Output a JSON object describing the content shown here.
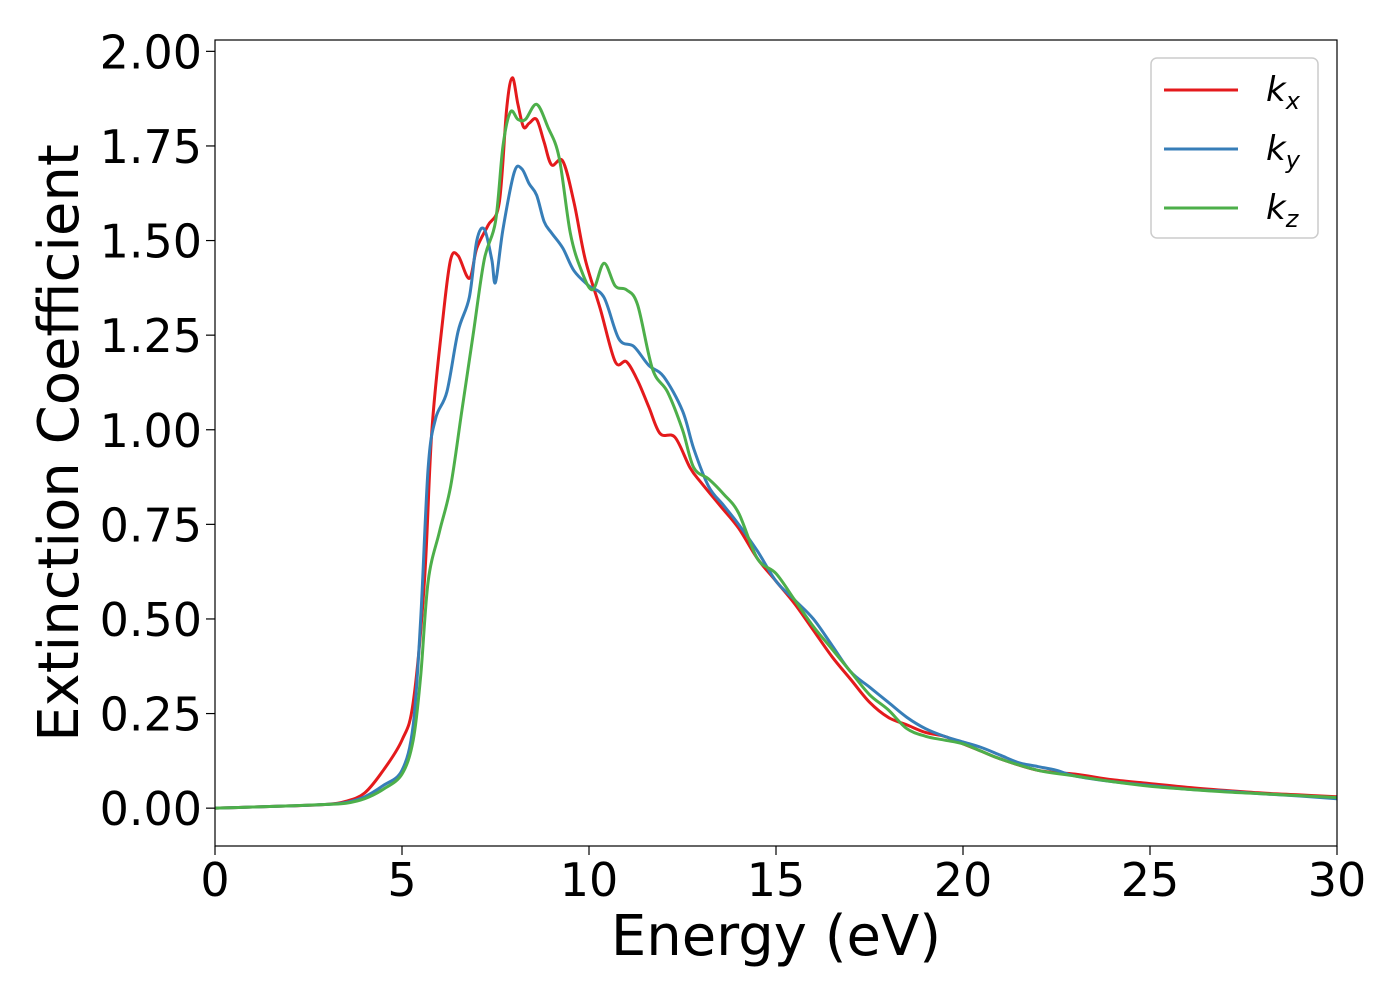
{
  "chart_data": {
    "type": "line",
    "title": "",
    "xlabel": "Energy (eV)",
    "ylabel": "Extinction Coefficient",
    "xlim": [
      0,
      30
    ],
    "ylim": [
      -0.1,
      2.03
    ],
    "xticks": [
      0,
      5,
      10,
      15,
      20,
      25,
      30
    ],
    "xtick_labels": [
      "0",
      "5",
      "10",
      "15",
      "20",
      "25",
      "30"
    ],
    "yticks": [
      0.0,
      0.25,
      0.5,
      0.75,
      1.0,
      1.25,
      1.5,
      1.75,
      2.0
    ],
    "ytick_labels": [
      "0.00",
      "0.25",
      "0.50",
      "0.75",
      "1.00",
      "1.25",
      "1.50",
      "1.75",
      "2.00"
    ],
    "grid": false,
    "legend_position": "top-right",
    "series": [
      {
        "name": "k",
        "subscript": "x",
        "color": "#e41a1c",
        "points": [
          [
            0,
            0
          ],
          [
            1,
            0.003
          ],
          [
            2,
            0.006
          ],
          [
            3,
            0.01
          ],
          [
            3.5,
            0.018
          ],
          [
            4,
            0.04
          ],
          [
            4.5,
            0.1
          ],
          [
            5,
            0.18
          ],
          [
            5.3,
            0.28
          ],
          [
            5.6,
            0.6
          ],
          [
            5.8,
            1.0
          ],
          [
            6.1,
            1.3
          ],
          [
            6.3,
            1.45
          ],
          [
            6.5,
            1.46
          ],
          [
            6.8,
            1.4
          ],
          [
            7.0,
            1.48
          ],
          [
            7.3,
            1.54
          ],
          [
            7.6,
            1.6
          ],
          [
            7.8,
            1.85
          ],
          [
            7.95,
            1.93
          ],
          [
            8.1,
            1.86
          ],
          [
            8.25,
            1.8
          ],
          [
            8.4,
            1.81
          ],
          [
            8.6,
            1.82
          ],
          [
            8.8,
            1.76
          ],
          [
            9.0,
            1.7
          ],
          [
            9.3,
            1.71
          ],
          [
            9.6,
            1.6
          ],
          [
            9.9,
            1.45
          ],
          [
            10.3,
            1.32
          ],
          [
            10.7,
            1.18
          ],
          [
            11.0,
            1.18
          ],
          [
            11.3,
            1.13
          ],
          [
            11.6,
            1.06
          ],
          [
            11.9,
            0.99
          ],
          [
            12.3,
            0.98
          ],
          [
            12.7,
            0.9
          ],
          [
            13.0,
            0.86
          ],
          [
            13.5,
            0.8
          ],
          [
            14.0,
            0.74
          ],
          [
            14.5,
            0.66
          ],
          [
            15.0,
            0.6
          ],
          [
            15.5,
            0.54
          ],
          [
            16.0,
            0.47
          ],
          [
            16.5,
            0.4
          ],
          [
            17.0,
            0.34
          ],
          [
            17.5,
            0.28
          ],
          [
            18.0,
            0.24
          ],
          [
            18.5,
            0.22
          ],
          [
            19.0,
            0.2
          ],
          [
            19.5,
            0.19
          ],
          [
            20.0,
            0.17
          ],
          [
            20.5,
            0.15
          ],
          [
            21.0,
            0.13
          ],
          [
            22.0,
            0.1
          ],
          [
            23.0,
            0.09
          ],
          [
            24.0,
            0.075
          ],
          [
            25.0,
            0.065
          ],
          [
            26.0,
            0.055
          ],
          [
            27.0,
            0.047
          ],
          [
            28.0,
            0.04
          ],
          [
            29.0,
            0.035
          ],
          [
            30.0,
            0.03
          ]
        ]
      },
      {
        "name": "k",
        "subscript": "y",
        "color": "#377eb8",
        "points": [
          [
            0,
            0
          ],
          [
            1,
            0.003
          ],
          [
            2,
            0.006
          ],
          [
            3,
            0.01
          ],
          [
            3.5,
            0.015
          ],
          [
            4,
            0.03
          ],
          [
            4.5,
            0.06
          ],
          [
            5,
            0.1
          ],
          [
            5.3,
            0.22
          ],
          [
            5.5,
            0.5
          ],
          [
            5.7,
            0.9
          ],
          [
            5.9,
            1.03
          ],
          [
            6.2,
            1.1
          ],
          [
            6.5,
            1.26
          ],
          [
            6.8,
            1.35
          ],
          [
            7.0,
            1.5
          ],
          [
            7.2,
            1.53
          ],
          [
            7.4,
            1.45
          ],
          [
            7.5,
            1.39
          ],
          [
            7.7,
            1.53
          ],
          [
            8.0,
            1.68
          ],
          [
            8.2,
            1.69
          ],
          [
            8.4,
            1.65
          ],
          [
            8.6,
            1.62
          ],
          [
            8.8,
            1.55
          ],
          [
            9.0,
            1.52
          ],
          [
            9.3,
            1.48
          ],
          [
            9.6,
            1.42
          ],
          [
            10.0,
            1.38
          ],
          [
            10.4,
            1.35
          ],
          [
            10.8,
            1.24
          ],
          [
            11.2,
            1.22
          ],
          [
            11.6,
            1.17
          ],
          [
            12.0,
            1.14
          ],
          [
            12.5,
            1.05
          ],
          [
            12.8,
            0.95
          ],
          [
            13.2,
            0.85
          ],
          [
            13.6,
            0.8
          ],
          [
            14.0,
            0.75
          ],
          [
            14.5,
            0.68
          ],
          [
            15.0,
            0.6
          ],
          [
            15.5,
            0.55
          ],
          [
            16.0,
            0.5
          ],
          [
            16.5,
            0.43
          ],
          [
            17.0,
            0.36
          ],
          [
            17.5,
            0.32
          ],
          [
            18.0,
            0.28
          ],
          [
            18.5,
            0.24
          ],
          [
            19.0,
            0.21
          ],
          [
            19.5,
            0.19
          ],
          [
            20.0,
            0.175
          ],
          [
            20.5,
            0.16
          ],
          [
            21.0,
            0.14
          ],
          [
            21.5,
            0.12
          ],
          [
            22.0,
            0.11
          ],
          [
            22.5,
            0.1
          ],
          [
            23.0,
            0.085
          ],
          [
            24.0,
            0.07
          ],
          [
            25.0,
            0.06
          ],
          [
            26.0,
            0.05
          ],
          [
            27.0,
            0.045
          ],
          [
            28.0,
            0.038
          ],
          [
            29.0,
            0.032
          ],
          [
            30.0,
            0.025
          ]
        ]
      },
      {
        "name": "k",
        "subscript": "z",
        "color": "#4daf4a",
        "points": [
          [
            0,
            0
          ],
          [
            1,
            0.003
          ],
          [
            2,
            0.006
          ],
          [
            3,
            0.01
          ],
          [
            3.5,
            0.013
          ],
          [
            4,
            0.025
          ],
          [
            4.5,
            0.05
          ],
          [
            5,
            0.09
          ],
          [
            5.3,
            0.18
          ],
          [
            5.5,
            0.35
          ],
          [
            5.7,
            0.6
          ],
          [
            6.0,
            0.73
          ],
          [
            6.3,
            0.85
          ],
          [
            6.6,
            1.05
          ],
          [
            6.9,
            1.25
          ],
          [
            7.2,
            1.45
          ],
          [
            7.5,
            1.55
          ],
          [
            7.7,
            1.75
          ],
          [
            7.9,
            1.84
          ],
          [
            8.1,
            1.82
          ],
          [
            8.3,
            1.82
          ],
          [
            8.6,
            1.86
          ],
          [
            8.9,
            1.8
          ],
          [
            9.2,
            1.72
          ],
          [
            9.5,
            1.52
          ],
          [
            9.8,
            1.42
          ],
          [
            10.1,
            1.37
          ],
          [
            10.4,
            1.44
          ],
          [
            10.7,
            1.38
          ],
          [
            11.0,
            1.37
          ],
          [
            11.3,
            1.33
          ],
          [
            11.7,
            1.16
          ],
          [
            12.1,
            1.1
          ],
          [
            12.5,
            1.0
          ],
          [
            12.8,
            0.9
          ],
          [
            13.2,
            0.87
          ],
          [
            13.6,
            0.83
          ],
          [
            14.0,
            0.78
          ],
          [
            14.5,
            0.66
          ],
          [
            15.0,
            0.62
          ],
          [
            15.5,
            0.55
          ],
          [
            16.0,
            0.48
          ],
          [
            16.5,
            0.42
          ],
          [
            17.0,
            0.36
          ],
          [
            17.5,
            0.3
          ],
          [
            18.0,
            0.26
          ],
          [
            18.5,
            0.21
          ],
          [
            19.0,
            0.19
          ],
          [
            19.5,
            0.18
          ],
          [
            20.0,
            0.17
          ],
          [
            20.5,
            0.15
          ],
          [
            21.0,
            0.13
          ],
          [
            22.0,
            0.1
          ],
          [
            23.0,
            0.085
          ],
          [
            24.0,
            0.07
          ],
          [
            25.0,
            0.058
          ],
          [
            26.0,
            0.05
          ],
          [
            27.0,
            0.043
          ],
          [
            28.0,
            0.038
          ],
          [
            29.0,
            0.033
          ],
          [
            30.0,
            0.028
          ]
        ]
      }
    ]
  }
}
